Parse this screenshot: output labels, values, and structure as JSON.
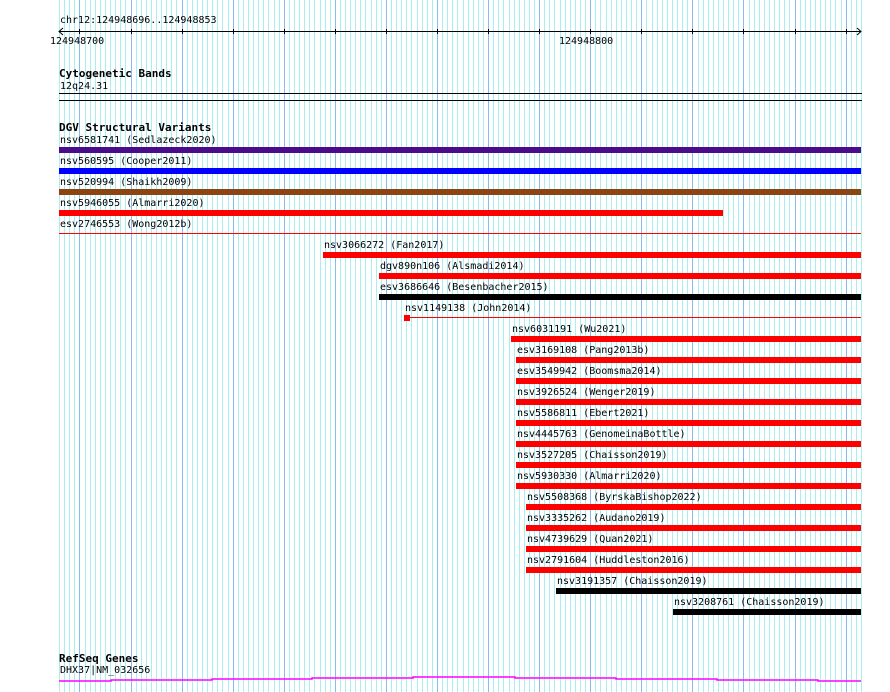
{
  "ruler": {
    "region": "chr12:124948696..124948853",
    "tick_labels": [
      "124948700",
      "124948800"
    ]
  },
  "cytoband_track": {
    "title": "Cytogenetic Bands",
    "band": "12q24.31"
  },
  "dgv_track": {
    "title": "DGV Structural Variants",
    "features": [
      {
        "label": "nsv6581741 (Sedlazeck2020)",
        "color": "#4b0c8c"
      },
      {
        "label": "nsv560595 (Cooper2011)",
        "color": "#0000ff"
      },
      {
        "label": "nsv520994 (Shaikh2009)",
        "color": "#8b4513"
      },
      {
        "label": "nsv5946055 (Almarri2020)",
        "color": "#ff0000"
      },
      {
        "label": "esv2746553 (Wong2012b)",
        "color": "#ff0000"
      },
      {
        "label": "nsv3066272 (Fan2017)",
        "color": "#ff0000"
      },
      {
        "label": "dgv890n106 (Alsmadi2014)",
        "color": "#ff0000"
      },
      {
        "label": "esv3686646 (Besenbacher2015)",
        "color": "#000000"
      },
      {
        "label": "nsv1149138 (John2014)",
        "color": "#ff0000"
      },
      {
        "label": "nsv6031191 (Wu2021)",
        "color": "#ff0000"
      },
      {
        "label": "esv3169108 (Pang2013b)",
        "color": "#ff0000"
      },
      {
        "label": "esv3549942 (Boomsma2014)",
        "color": "#ff0000"
      },
      {
        "label": "nsv3926524 (Wenger2019)",
        "color": "#ff0000"
      },
      {
        "label": "nsv5586811 (Ebert2021)",
        "color": "#ff0000"
      },
      {
        "label": "nsv4445763 (GenomeinaBottle)",
        "color": "#ff0000"
      },
      {
        "label": "nsv3527205 (Chaisson2019)",
        "color": "#ff0000"
      },
      {
        "label": "nsv5930330 (Almarri2020)",
        "color": "#ff0000"
      },
      {
        "label": "nsv5508368 (ByrskaBishop2022)",
        "color": "#ff0000"
      },
      {
        "label": "nsv3335262 (Audano2019)",
        "color": "#ff0000"
      },
      {
        "label": "nsv4739629 (Quan2021)",
        "color": "#ff0000"
      },
      {
        "label": "nsv2791604 (Huddleston2016)",
        "color": "#ff0000"
      },
      {
        "label": "nsv3191357 (Chaisson2019)",
        "color": "#000000"
      },
      {
        "label": "nsv3208761 (Chaisson2019)",
        "color": "#000000"
      }
    ]
  },
  "refseq_track": {
    "title": "RefSeq Genes",
    "gene": "DHX37|NM_032656",
    "color": "#ff00ff"
  },
  "colors": {
    "grid_minor": "#aaeef0",
    "grid_major": "#88bbee"
  }
}
